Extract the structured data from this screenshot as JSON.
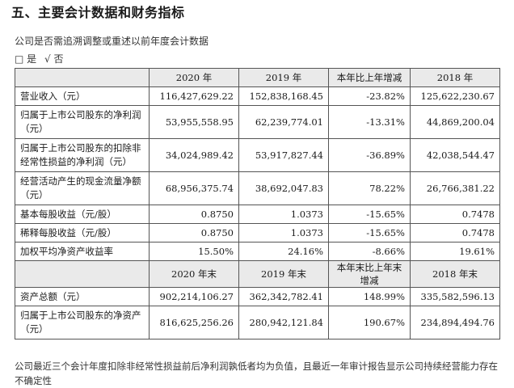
{
  "section_title": "五、主要会计数据和财务指标",
  "question": "公司是否需追溯调整或重述以前年度会计数据",
  "answer": {
    "yes_box": "□ 是",
    "no_mark": "√ 否"
  },
  "table1": {
    "headers": [
      "",
      "2020 年",
      "2019 年",
      "本年比上年增减",
      "2018 年"
    ],
    "rows": [
      {
        "label": "营业收入（元）",
        "c2020": "116,427,629.22",
        "c2019": "152,838,168.45",
        "change": "-23.82%",
        "c2018": "125,622,230.67"
      },
      {
        "label": "归属于上市公司股东的净利润（元）",
        "c2020": "53,955,558.95",
        "c2019": "62,239,774.01",
        "change": "-13.31%",
        "c2018": "44,869,200.04"
      },
      {
        "label": "归属于上市公司股东的扣除非经常性损益的净利润（元）",
        "c2020": "34,024,989.42",
        "c2019": "53,917,827.44",
        "change": "-36.89%",
        "c2018": "42,038,544.47"
      },
      {
        "label": "经营活动产生的现金流量净额（元）",
        "c2020": "68,956,375.74",
        "c2019": "38,692,047.83",
        "change": "78.22%",
        "c2018": "26,766,381.22"
      },
      {
        "label": "基本每股收益（元/股）",
        "c2020": "0.8750",
        "c2019": "1.0373",
        "change": "-15.65%",
        "c2018": "0.7478"
      },
      {
        "label": "稀释每股收益（元/股）",
        "c2020": "0.8750",
        "c2019": "1.0373",
        "change": "-15.65%",
        "c2018": "0.7478"
      },
      {
        "label": "加权平均净资产收益率",
        "c2020": "15.50%",
        "c2019": "24.16%",
        "change": "-8.66%",
        "c2018": "19.61%"
      }
    ]
  },
  "table2": {
    "headers": [
      "",
      "2020 年末",
      "2019 年末",
      "本年末比上年末增减",
      "2018 年末"
    ],
    "rows": [
      {
        "label": "资产总额（元）",
        "c2020": "902,214,106.27",
        "c2019": "362,342,782.41",
        "change": "148.99%",
        "c2018": "335,582,596.13"
      },
      {
        "label": "归属于上市公司股东的净资产（元）",
        "c2020": "816,625,256.26",
        "c2019": "280,942,121.84",
        "change": "190.67%",
        "c2018": "234,894,494.76"
      }
    ]
  },
  "footnote": "公司最近三个会计年度扣除非经常性损益前后净利润孰低者均为负值，且最近一年审计报告显示公司持续经营能力存在不确定性"
}
